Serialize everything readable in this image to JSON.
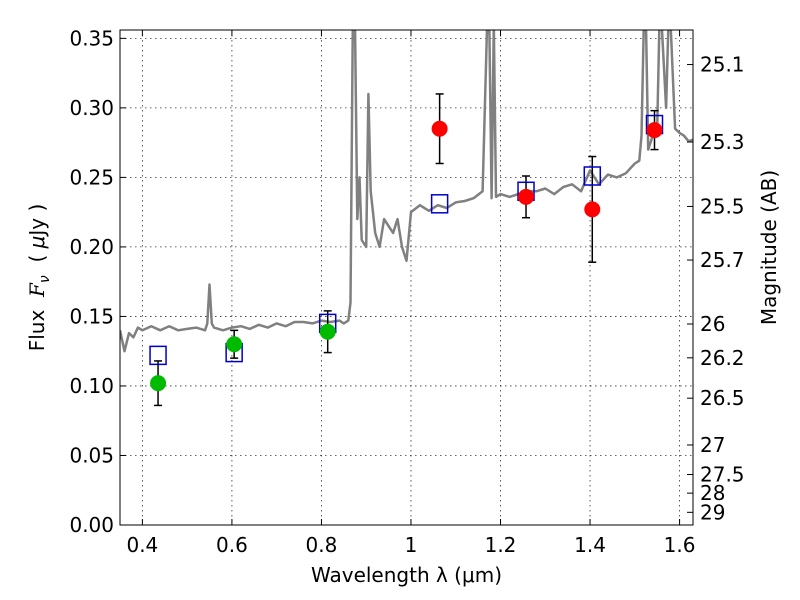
{
  "chart_data": {
    "type": "scatter",
    "title": "",
    "xlabel": "Wavelength  λ (μm)",
    "ylabel": "Flux  F_ν  ( μJy )",
    "ylabel_parts": [
      "Flux  ",
      "F",
      "ν",
      "  ( ",
      "μ",
      "Jy )"
    ],
    "y2label": "Magnitude (AB)",
    "xlim": [
      0.35,
      1.63
    ],
    "ylim": [
      0.0,
      0.356
    ],
    "grid": true,
    "x_ticks": [
      0.4,
      0.6,
      0.8,
      1.0,
      1.2,
      1.4,
      1.6
    ],
    "x_tick_labels": [
      "0.4",
      "0.6",
      "0.8",
      "1",
      "1.2",
      "1.4",
      "1.6"
    ],
    "y_ticks": [
      0.0,
      0.05,
      0.1,
      0.15,
      0.2,
      0.25,
      0.3,
      0.35
    ],
    "y_tick_labels": [
      "0.00",
      "0.05",
      "0.10",
      "0.15",
      "0.20",
      "0.25",
      "0.30",
      "0.35"
    ],
    "mag_ticks": [
      "25.1",
      "25.3",
      "25.5",
      "25.7",
      "26",
      "26.2",
      "26.5",
      "27",
      "27.5",
      "28",
      "29"
    ],
    "colors": {
      "green_points": "#00bb00",
      "red_points": "#ff0000",
      "model_boxes": "#0000cc",
      "spectrum": "#808080",
      "error_bars": "#000000"
    },
    "series": [
      {
        "name": "green-points",
        "x": [
          0.435,
          0.605,
          0.814
        ],
        "y": [
          0.102,
          0.13,
          0.139
        ],
        "yerr": [
          0.016,
          0.01,
          0.015
        ]
      },
      {
        "name": "red-points",
        "x": [
          1.064,
          1.257,
          1.405,
          1.544
        ],
        "y": [
          0.285,
          0.236,
          0.227,
          0.284
        ],
        "yerr": [
          0.025,
          0.015,
          0.038,
          0.014
        ]
      },
      {
        "name": "model-boxes",
        "x": [
          0.435,
          0.605,
          0.814,
          1.064,
          1.257,
          1.405,
          1.544
        ],
        "y": [
          0.122,
          0.124,
          0.145,
          0.231,
          0.24,
          0.251,
          0.288
        ]
      },
      {
        "name": "spectrum",
        "x": [
          0.35,
          0.36,
          0.37,
          0.38,
          0.39,
          0.4,
          0.42,
          0.44,
          0.46,
          0.48,
          0.5,
          0.52,
          0.54,
          0.545,
          0.55,
          0.555,
          0.56,
          0.58,
          0.6,
          0.62,
          0.64,
          0.66,
          0.68,
          0.7,
          0.72,
          0.74,
          0.76,
          0.78,
          0.8,
          0.82,
          0.84,
          0.85,
          0.86,
          0.865,
          0.87,
          0.875,
          0.88,
          0.885,
          0.89,
          0.9,
          0.905,
          0.91,
          0.92,
          0.93,
          0.94,
          0.95,
          0.96,
          0.97,
          0.98,
          0.99,
          1.0,
          1.02,
          1.04,
          1.06,
          1.08,
          1.1,
          1.12,
          1.14,
          1.16,
          1.17,
          1.175,
          1.18,
          1.185,
          1.19,
          1.2,
          1.22,
          1.24,
          1.26,
          1.28,
          1.3,
          1.32,
          1.34,
          1.36,
          1.38,
          1.4,
          1.42,
          1.44,
          1.46,
          1.48,
          1.5,
          1.51,
          1.515,
          1.52,
          1.525,
          1.53,
          1.54,
          1.55,
          1.555,
          1.56,
          1.57,
          1.575,
          1.58,
          1.59,
          1.6,
          1.61,
          1.62,
          1.63
        ],
        "y": [
          0.14,
          0.125,
          0.138,
          0.135,
          0.142,
          0.14,
          0.143,
          0.14,
          0.143,
          0.14,
          0.141,
          0.142,
          0.14,
          0.145,
          0.173,
          0.145,
          0.142,
          0.14,
          0.142,
          0.143,
          0.141,
          0.144,
          0.142,
          0.145,
          0.143,
          0.146,
          0.146,
          0.145,
          0.147,
          0.146,
          0.147,
          0.145,
          0.147,
          0.16,
          0.36,
          0.36,
          0.22,
          0.25,
          0.205,
          0.2,
          0.31,
          0.24,
          0.21,
          0.2,
          0.22,
          0.215,
          0.21,
          0.22,
          0.2,
          0.19,
          0.225,
          0.23,
          0.226,
          0.23,
          0.228,
          0.232,
          0.233,
          0.235,
          0.24,
          0.36,
          0.36,
          0.235,
          0.36,
          0.236,
          0.238,
          0.236,
          0.238,
          0.24,
          0.24,
          0.242,
          0.238,
          0.243,
          0.245,
          0.24,
          0.255,
          0.245,
          0.252,
          0.25,
          0.253,
          0.26,
          0.262,
          0.28,
          0.36,
          0.36,
          0.27,
          0.28,
          0.285,
          0.36,
          0.36,
          0.3,
          0.36,
          0.36,
          0.285,
          0.282,
          0.28,
          0.276,
          0.277
        ]
      }
    ]
  }
}
